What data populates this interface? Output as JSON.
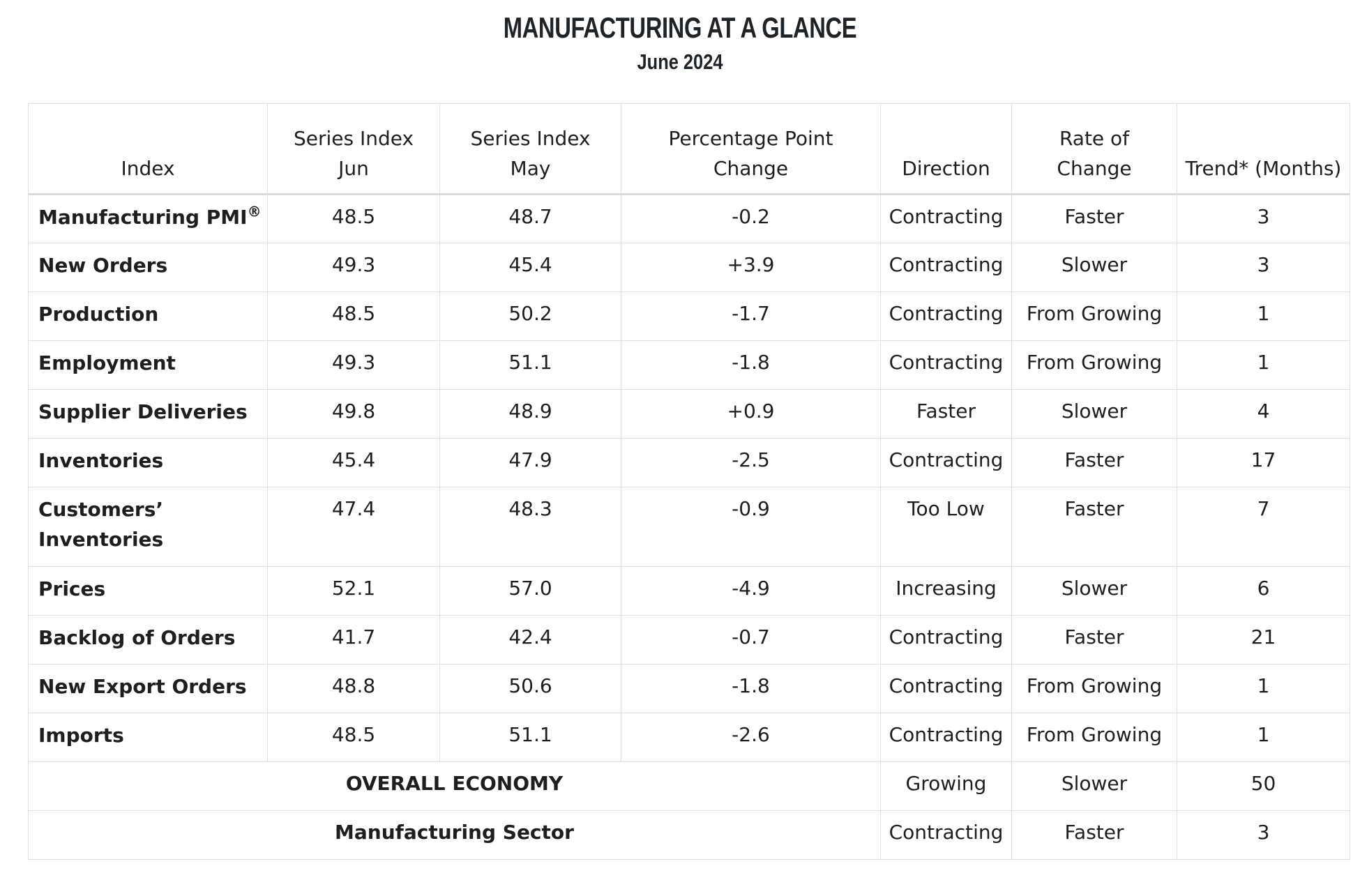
{
  "header": {
    "title": "MANUFACTURING AT A GLANCE",
    "subtitle": "June 2024"
  },
  "columns": {
    "index": "Index",
    "jun_l1": "Series Index",
    "jun_l2": "Jun",
    "may_l1": "Series Index",
    "may_l2": "May",
    "pct_l1": "Percentage Point",
    "pct_l2": "Change",
    "direction": "Direction",
    "rate_l1": "Rate of",
    "rate_l2": "Change",
    "trend": "Trend* (Months)"
  },
  "rows": [
    {
      "name": "Manufacturing PMI",
      "sup": "®",
      "jun": "48.5",
      "may": "48.7",
      "change": "-0.2",
      "direction": "Contracting",
      "rate": "Faster",
      "trend": "3"
    },
    {
      "name": "New Orders",
      "jun": "49.3",
      "may": "45.4",
      "change": "+3.9",
      "direction": "Contracting",
      "rate": "Slower",
      "trend": "3"
    },
    {
      "name": "Production",
      "jun": "48.5",
      "may": "50.2",
      "change": "-1.7",
      "direction": "Contracting",
      "rate": "From Growing",
      "trend": "1"
    },
    {
      "name": "Employment",
      "jun": "49.3",
      "may": "51.1",
      "change": "-1.8",
      "direction": "Contracting",
      "rate": "From Growing",
      "trend": "1"
    },
    {
      "name": "Supplier Deliveries",
      "jun": "49.8",
      "may": "48.9",
      "change": "+0.9",
      "direction": "Faster",
      "rate": "Slower",
      "trend": "4"
    },
    {
      "name": "Inventories",
      "jun": "45.4",
      "may": "47.9",
      "change": "-2.5",
      "direction": "Contracting",
      "rate": "Faster",
      "trend": "17"
    },
    {
      "name_l1": "Customers’",
      "name_l2": "Inventories",
      "jun": "47.4",
      "may": "48.3",
      "change": "-0.9",
      "direction": "Too Low",
      "rate": "Faster",
      "trend": "7"
    },
    {
      "name": "Prices",
      "jun": "52.1",
      "may": "57.0",
      "change": "-4.9",
      "direction": "Increasing",
      "rate": "Slower",
      "trend": "6"
    },
    {
      "name": "Backlog of Orders",
      "jun": "41.7",
      "may": "42.4",
      "change": "-0.7",
      "direction": "Contracting",
      "rate": "Faster",
      "trend": "21"
    },
    {
      "name": "New Export Orders",
      "jun": "48.8",
      "may": "50.6",
      "change": "-1.8",
      "direction": "Contracting",
      "rate": "From Growing",
      "trend": "1"
    },
    {
      "name": "Imports",
      "jun": "48.5",
      "may": "51.1",
      "change": "-2.6",
      "direction": "Contracting",
      "rate": "From Growing",
      "trend": "1"
    }
  ],
  "summary": [
    {
      "label": "OVERALL ECONOMY",
      "direction": "Growing",
      "rate": "Slower",
      "trend": "50"
    },
    {
      "label": "Manufacturing Sector",
      "direction": "Contracting",
      "rate": "Faster",
      "trend": "3"
    }
  ]
}
